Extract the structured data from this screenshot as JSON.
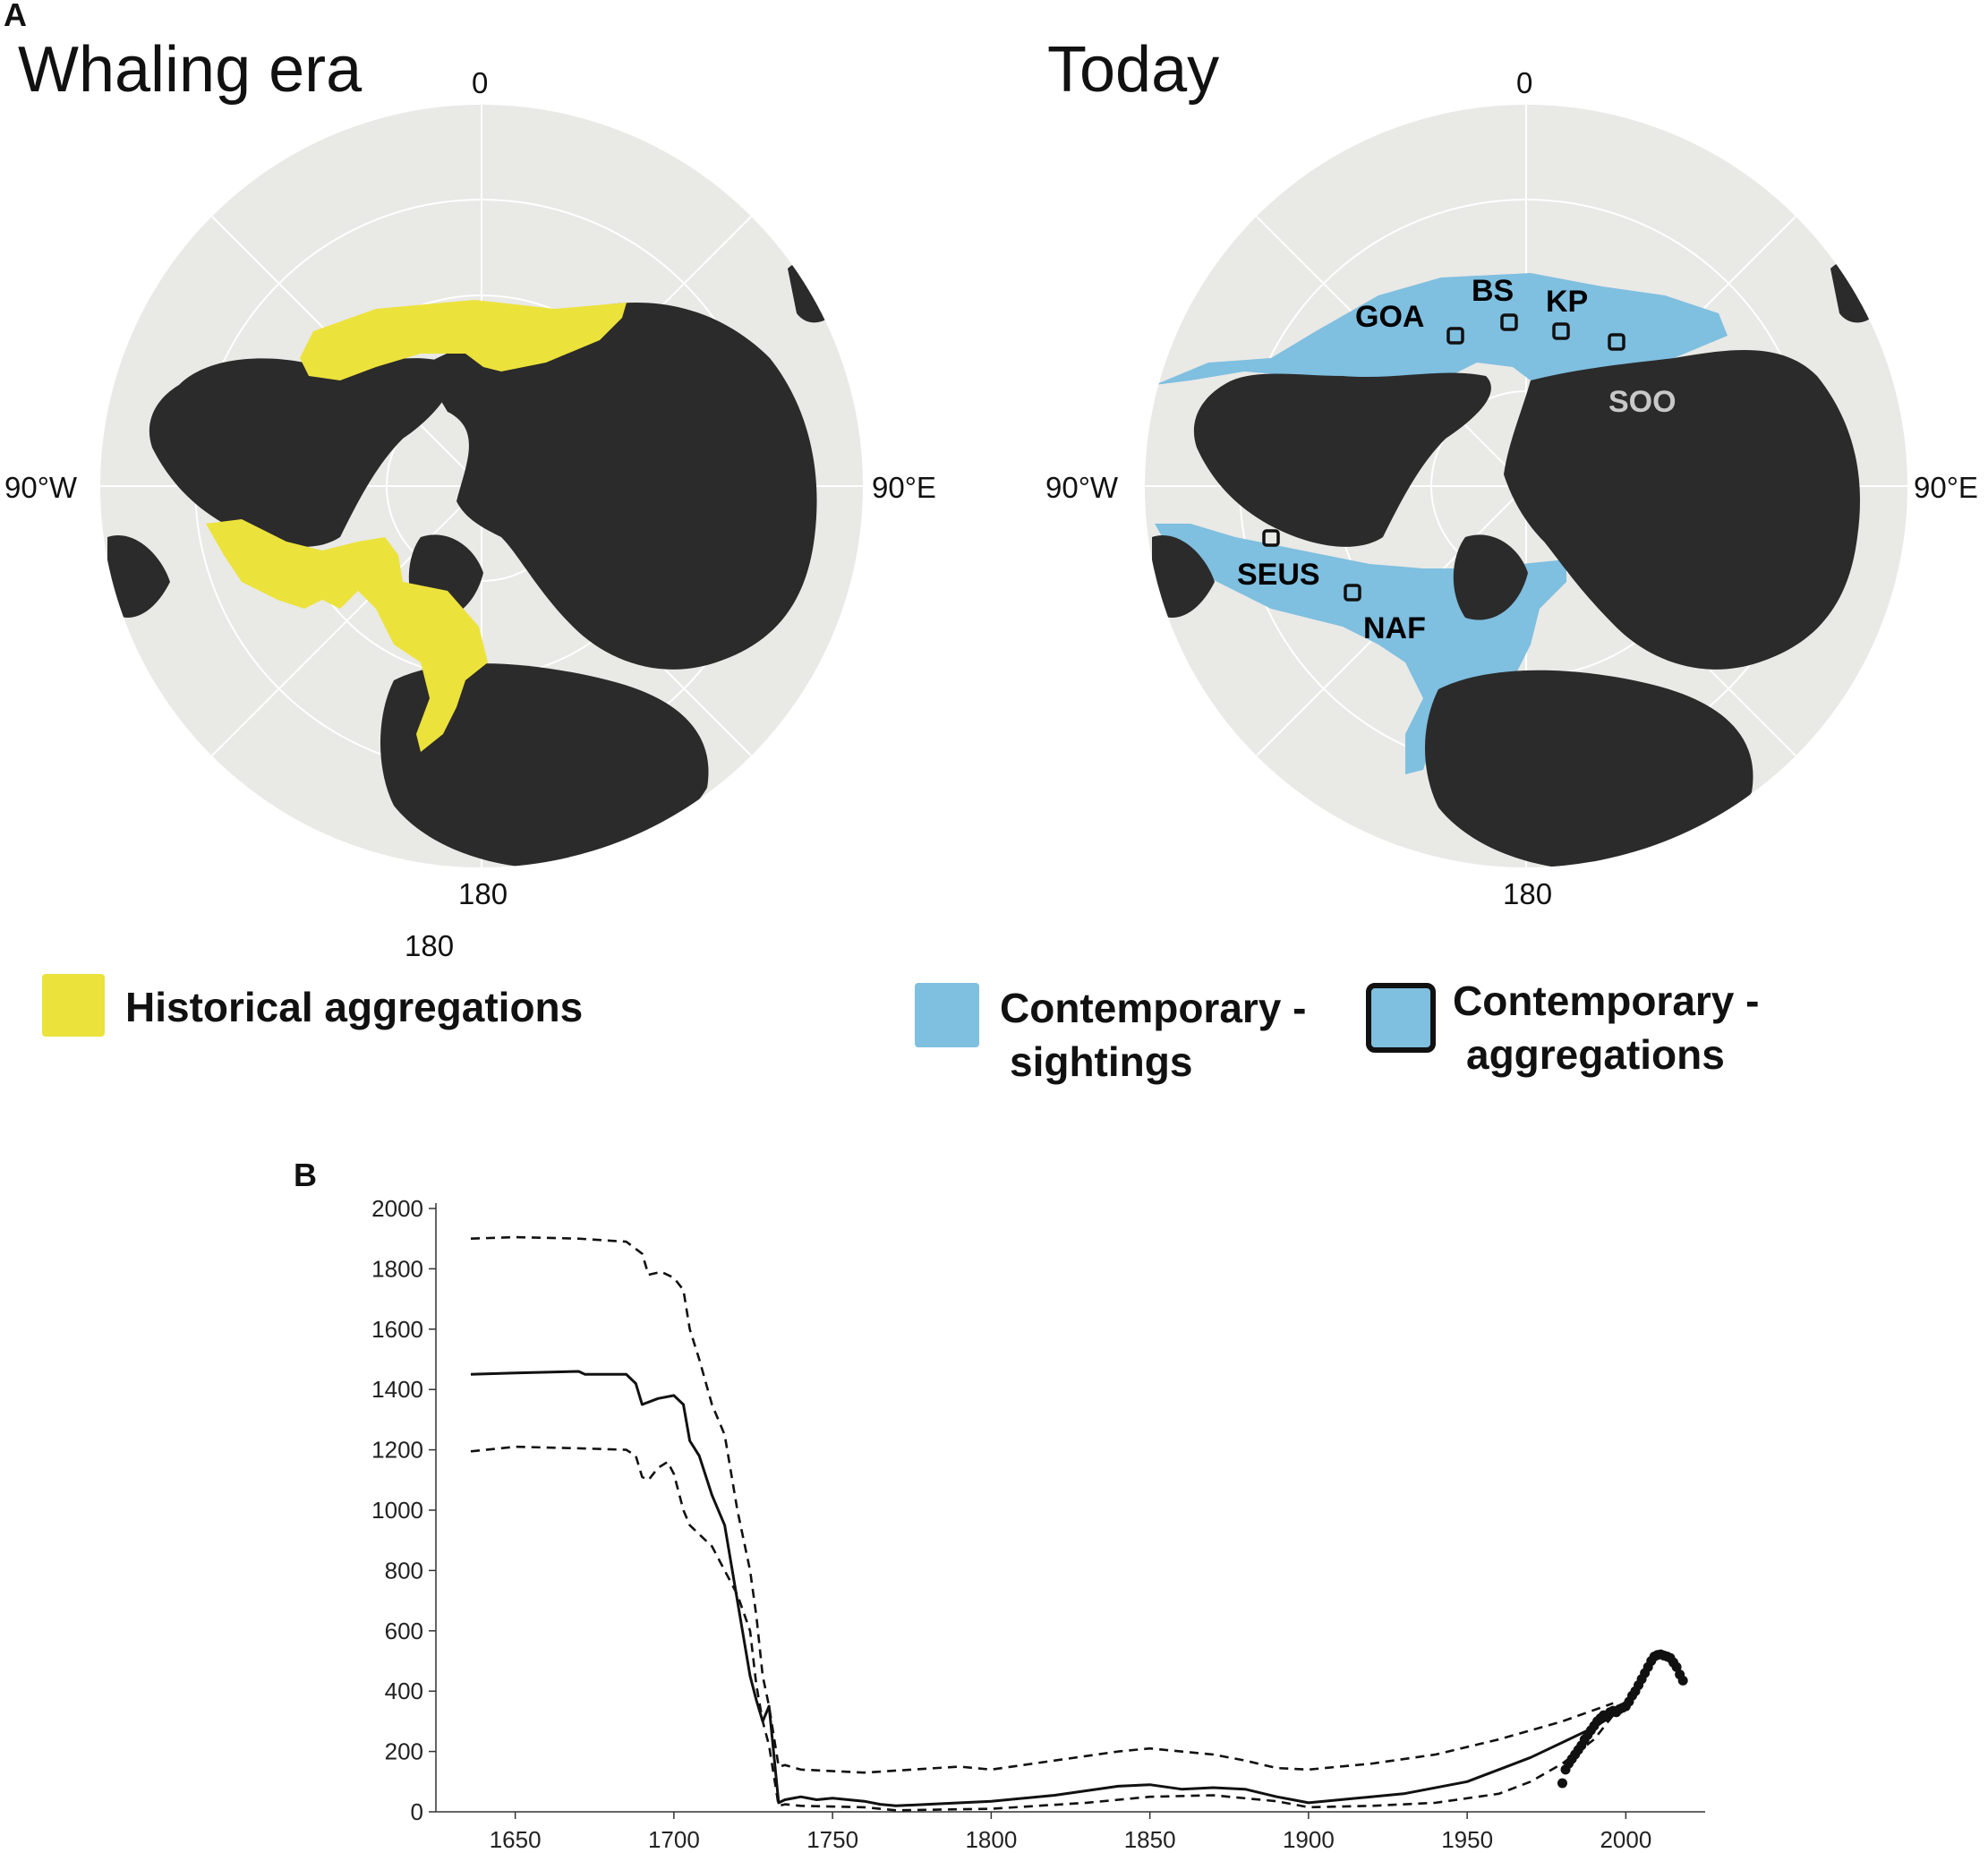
{
  "panel_a": {
    "letter": "A",
    "left_map": {
      "title": "Whaling era",
      "label_top": "0",
      "label_left": "90°W",
      "label_right": "90°E",
      "label_bottom": "180",
      "label_bottom_extra": "180"
    },
    "right_map": {
      "title": "Today",
      "label_top": "0",
      "label_left": "90°W",
      "label_right": "90°E",
      "label_bottom": "180",
      "sites": [
        "GOA",
        "BS",
        "KP",
        "SOO",
        "SEUS",
        "NAF"
      ]
    },
    "legend": {
      "historical": "Historical aggregations",
      "sightings_line1": "Contemporary -",
      "sightings_line2": "sightings",
      "aggregations_line1": "Contemporary -",
      "aggregations_line2": "aggregations"
    },
    "colors": {
      "ocean": "#e9e9e6",
      "land": "#2b2b2b",
      "historical": "#ece23c",
      "contemporary": "#7fbfe0",
      "soo_text": "#c8c8c8"
    }
  },
  "chart_data": {
    "type": "line",
    "panel_letter": "B",
    "title": "",
    "xlabel": "",
    "ylabel": "",
    "xlim": [
      1625,
      2025
    ],
    "ylim": [
      0,
      2000
    ],
    "xticks": [
      1650,
      1700,
      1750,
      1800,
      1850,
      1900,
      1950,
      2000
    ],
    "yticks": [
      0,
      200,
      400,
      600,
      800,
      1000,
      1200,
      1400,
      1600,
      1800,
      2000
    ],
    "grid": false,
    "series": [
      {
        "style": "solid",
        "x": [
          1636,
          1650,
          1670,
          1672,
          1685,
          1688,
          1690,
          1695,
          1700,
          1703,
          1705,
          1708,
          1712,
          1716,
          1720,
          1724,
          1726,
          1728,
          1730,
          1733,
          1735,
          1740,
          1745,
          1750,
          1755,
          1760,
          1765,
          1770,
          1780,
          1800,
          1820,
          1840,
          1850,
          1860,
          1870,
          1880,
          1890,
          1895,
          1900,
          1910,
          1930,
          1950,
          1960,
          1970,
          1980,
          1990,
          1996
        ],
        "values": [
          1450,
          1455,
          1460,
          1450,
          1450,
          1420,
          1350,
          1370,
          1380,
          1350,
          1230,
          1180,
          1050,
          950,
          700,
          450,
          370,
          300,
          350,
          30,
          40,
          50,
          40,
          45,
          40,
          35,
          25,
          20,
          25,
          35,
          55,
          85,
          90,
          75,
          80,
          75,
          50,
          40,
          30,
          40,
          60,
          100,
          140,
          180,
          230,
          280,
          320
        ]
      },
      {
        "style": "dashed",
        "x": [
          1636,
          1650,
          1670,
          1685,
          1690,
          1692,
          1696,
          1700,
          1703,
          1705,
          1708,
          1712,
          1716,
          1720,
          1724,
          1726,
          1728,
          1730,
          1733,
          1735,
          1740,
          1760,
          1790,
          1800,
          1820,
          1840,
          1850,
          1870,
          1880,
          1890,
          1900,
          1920,
          1940,
          1960,
          1980,
          1996
        ],
        "values": [
          1900,
          1905,
          1900,
          1890,
          1850,
          1780,
          1790,
          1770,
          1730,
          1600,
          1500,
          1350,
          1250,
          1000,
          800,
          650,
          450,
          350,
          150,
          155,
          140,
          130,
          150,
          140,
          170,
          200,
          210,
          190,
          170,
          145,
          140,
          160,
          190,
          240,
          300,
          360
        ]
      },
      {
        "style": "dashed",
        "x": [
          1636,
          1650,
          1670,
          1685,
          1688,
          1690,
          1692,
          1695,
          1698,
          1700,
          1703,
          1705,
          1708,
          1712,
          1716,
          1720,
          1724,
          1726,
          1728,
          1730,
          1733,
          1735,
          1740,
          1760,
          1770,
          1800,
          1830,
          1850,
          1870,
          1890,
          1900,
          1920,
          1940,
          1960,
          1970,
          1980,
          1990,
          1996
        ],
        "values": [
          1195,
          1210,
          1205,
          1200,
          1180,
          1110,
          1100,
          1140,
          1160,
          1120,
          1000,
          950,
          920,
          880,
          800,
          720,
          600,
          420,
          300,
          220,
          20,
          25,
          20,
          15,
          5,
          10,
          30,
          50,
          55,
          35,
          15,
          20,
          30,
          60,
          100,
          160,
          240,
          320
        ]
      },
      {
        "style": "dots",
        "x": [
          1980,
          1981,
          1982,
          1983,
          1984,
          1985,
          1986,
          1987,
          1988,
          1989,
          1990,
          1991,
          1992,
          1993,
          1994,
          1995,
          1996,
          1997,
          1998,
          1999,
          2000,
          2001,
          2002,
          2003,
          2004,
          2005,
          2006,
          2007,
          2008,
          2009,
          2010,
          2011,
          2012,
          2013,
          2014,
          2015,
          2016,
          2017,
          2018
        ],
        "values": [
          95,
          140,
          160,
          175,
          190,
          205,
          220,
          240,
          255,
          270,
          285,
          300,
          310,
          320,
          315,
          330,
          335,
          330,
          340,
          345,
          350,
          365,
          385,
          400,
          420,
          440,
          460,
          480,
          500,
          515,
          520,
          522,
          518,
          515,
          510,
          495,
          480,
          455,
          435
        ]
      }
    ]
  }
}
